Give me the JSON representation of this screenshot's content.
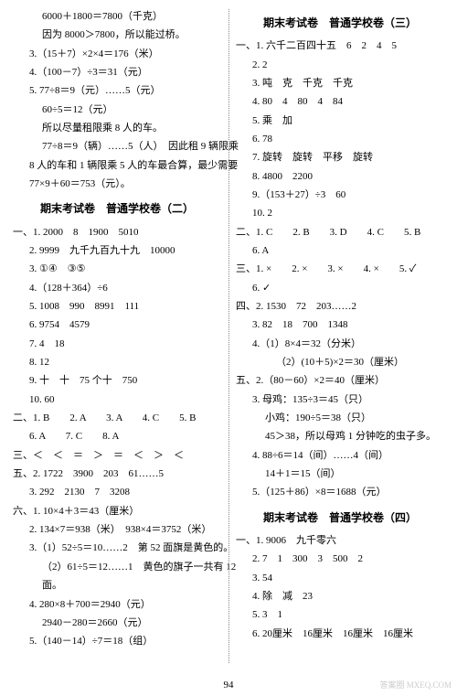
{
  "left": {
    "lines": [
      {
        "cls": "i2",
        "t": "6000＋1800＝7800（千克）"
      },
      {
        "cls": "i2",
        "t": "因为 8000＞7800，所以能过桥。"
      },
      {
        "cls": "i1",
        "t": "3.（15＋7）×2×4＝176（米）"
      },
      {
        "cls": "i1",
        "t": "4.（100－7）÷3＝31（元）"
      },
      {
        "cls": "i1",
        "t": "5. 77÷8＝9（元）……5（元）"
      },
      {
        "cls": "i2",
        "t": "60÷5＝12（元）"
      },
      {
        "cls": "i2",
        "t": "所以尽量租限乘 8 人的车。"
      },
      {
        "cls": "i2",
        "t": "77÷8＝9（辆）……5（人）  因此租 9 辆限乘"
      },
      {
        "cls": "i1",
        "t": "8 人的车和 1 辆限乘 5 人的车最合算，最少需要"
      },
      {
        "cls": "i1",
        "t": "77×9＋60＝753（元）。"
      }
    ],
    "heading2": "期末考试卷　普通学校卷（二）",
    "lines2": [
      {
        "cls": "sec",
        "t": "一、1. 2000　8　1900　5010"
      },
      {
        "cls": "i1",
        "t": "2. 9999　九千九百九十九　10000"
      },
      {
        "cls": "i1",
        "t": "3. ①④　③⑤"
      },
      {
        "cls": "i1",
        "t": "4.（128＋364）÷6"
      },
      {
        "cls": "i1",
        "t": "5. 1008　990　8991　111"
      },
      {
        "cls": "i1",
        "t": "6. 9754　4579"
      },
      {
        "cls": "i1",
        "t": "7. 4　18"
      },
      {
        "cls": "i1",
        "t": "8. 12"
      },
      {
        "cls": "i1",
        "t": "9. 十　十　75 个十　750"
      },
      {
        "cls": "i1",
        "t": "10. 60"
      },
      {
        "cls": "sec",
        "t": "二、1. B　　2. A　　3. A　　4. C　　5. B"
      },
      {
        "cls": "i1",
        "t": "6. A　　7. C　　8. A"
      },
      {
        "cls": "sec",
        "t": "三、＜　＜　＝　＞　＝　＜　＞　＜"
      },
      {
        "cls": "sec",
        "t": "五、2. 1722　3900　203　61……5"
      },
      {
        "cls": "i1",
        "t": "3. 292　2130　7　3208"
      },
      {
        "cls": "sec",
        "t": "六、1. 10×4＋3＝43（厘米）"
      },
      {
        "cls": "i1",
        "t": "2. 134×7＝938（米）　938×4＝3752（米）"
      },
      {
        "cls": "i1",
        "t": "3.（1）52÷5＝10……2　第 52 面旗是黄色的。"
      },
      {
        "cls": "i2",
        "t": "（2）61÷5＝12……1　黄色的旗子一共有 12"
      },
      {
        "cls": "i2",
        "t": "面。"
      },
      {
        "cls": "i1",
        "t": "4. 280×8＋700＝2940（元）"
      },
      {
        "cls": "i2",
        "t": "2940－280＝2660（元）"
      },
      {
        "cls": "i1",
        "t": "5.（140－14）÷7＝18（组）"
      }
    ]
  },
  "right": {
    "heading3": "期末考试卷　普通学校卷（三）",
    "lines3": [
      {
        "cls": "sec",
        "t": "一、1. 六千二百四十五　6　2　4　5"
      },
      {
        "cls": "i1",
        "t": "2. 2"
      },
      {
        "cls": "i1",
        "t": "3. 吨　克　千克　千克"
      },
      {
        "cls": "i1",
        "t": "4. 80　4　80　4　84"
      },
      {
        "cls": "i1",
        "t": "5. 乘　加"
      },
      {
        "cls": "i1",
        "t": "6. 78"
      },
      {
        "cls": "i1",
        "t": "7. 旋转　旋转　平移　旋转"
      },
      {
        "cls": "i1",
        "t": "8. 4800　2200"
      },
      {
        "cls": "i1",
        "t": "9.（153＋27）÷3　60"
      },
      {
        "cls": "i1",
        "t": "10. 2"
      },
      {
        "cls": "sec",
        "t": "二、1. C　　2. B　　3. D　　4. C　　5. B"
      },
      {
        "cls": "i1",
        "t": "6. A"
      },
      {
        "cls": "sec",
        "t": "三、1. ×　　2. ×　　3. ×　　4. ×　　5. ✓"
      },
      {
        "cls": "i1",
        "t": "6. ✓"
      },
      {
        "cls": "sec",
        "t": "四、2. 1530　72　203……2"
      },
      {
        "cls": "i1",
        "t": "3. 82　18　700　1348"
      },
      {
        "cls": "i1",
        "t": "4.（1）8×4＝32（分米）"
      },
      {
        "cls": "i3",
        "t": "（2）(10＋5)×2＝30（厘米）"
      },
      {
        "cls": "sec",
        "t": "五、2.（80－60）×2＝40（厘米）"
      },
      {
        "cls": "i1",
        "t": "3. 母鸡：135÷3＝45（只）"
      },
      {
        "cls": "i2",
        "t": "小鸡：190÷5＝38（只）"
      },
      {
        "cls": "i2",
        "t": "45＞38，所以母鸡 1 分钟吃的虫子多。"
      },
      {
        "cls": "i1",
        "t": "4. 88÷6＝14（间）……4（间）"
      },
      {
        "cls": "i2",
        "t": "14＋1＝15（间）"
      },
      {
        "cls": "i1",
        "t": "5.（125＋86）×8＝1688（元）"
      }
    ],
    "heading4": "期末考试卷　普通学校卷（四）",
    "lines4": [
      {
        "cls": "sec",
        "t": "一、1. 9006　九千零六"
      },
      {
        "cls": "i1",
        "t": "2. 7　1　300　3　500　2"
      },
      {
        "cls": "i1",
        "t": "3. 54"
      },
      {
        "cls": "i1",
        "t": "4. 除　减　23"
      },
      {
        "cls": "i1",
        "t": "5. 3　1"
      },
      {
        "cls": "i1",
        "t": "6. 20厘米　16厘米　16厘米　16厘米"
      }
    ]
  },
  "pagenum": "94",
  "watermark": "答案圈\nMXEQ.COM"
}
